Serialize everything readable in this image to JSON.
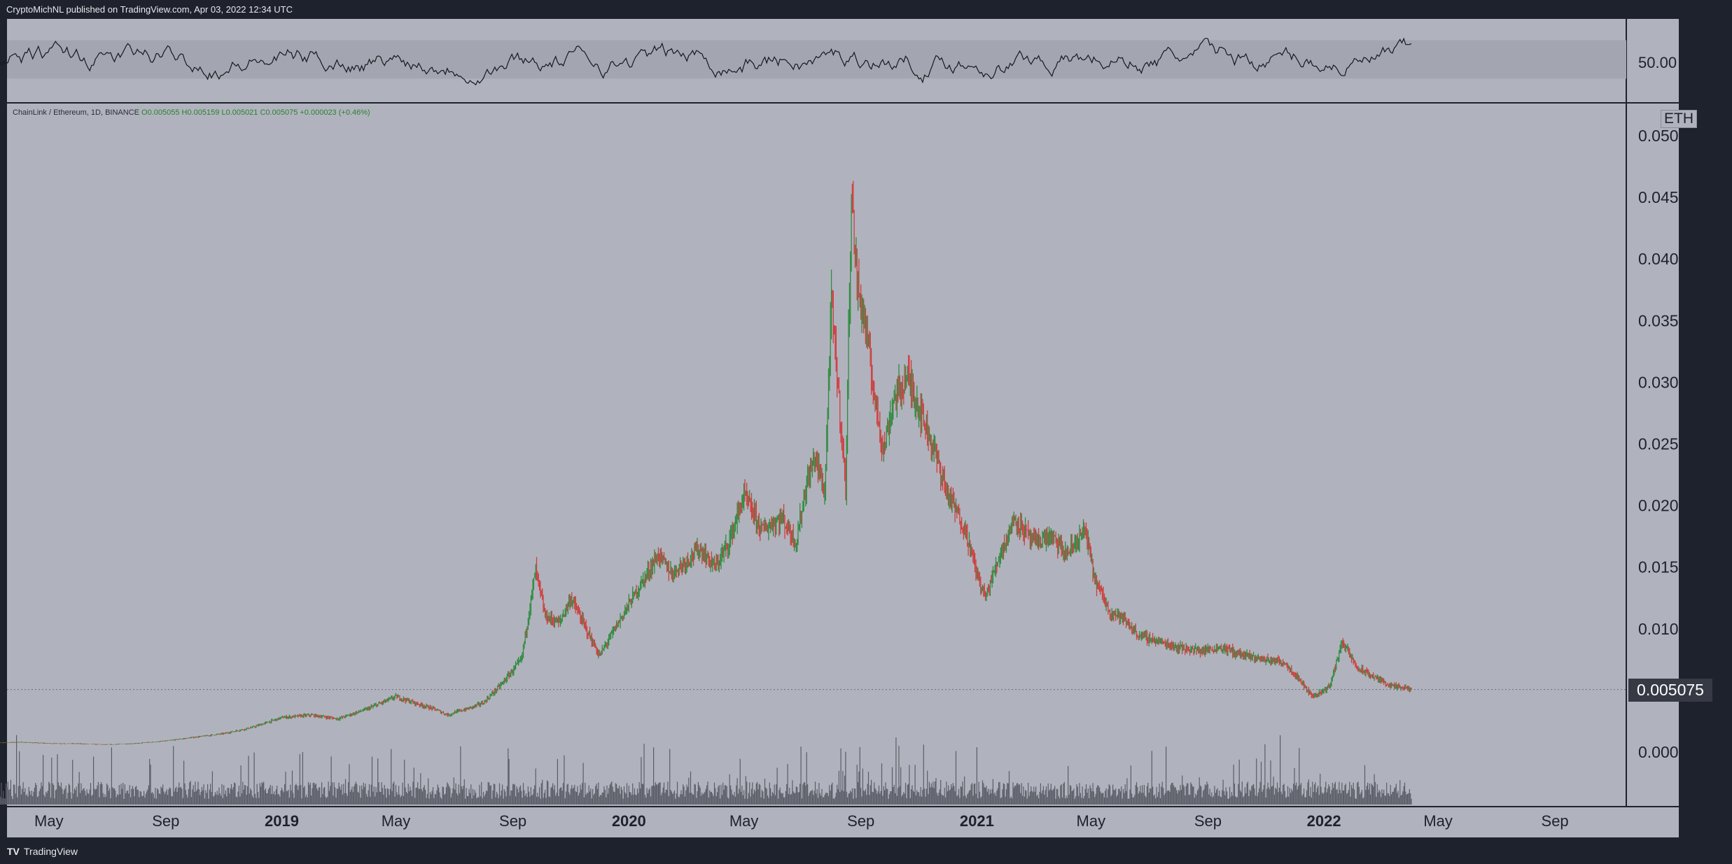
{
  "header": {
    "publisher": "CryptoMichNL published on TradingView.com, Apr 03, 2022 12:34 UTC"
  },
  "footer": {
    "logo": "TV",
    "brand": "TradingView"
  },
  "legend": {
    "symbol": "ChainLink / Ethereum, 1D, BINANCE",
    "open": "O0.005055",
    "high": "H0.005159",
    "low": "L0.005021",
    "close": "C0.005075",
    "change": "+0.000023 (+0.46%)"
  },
  "rsi": {
    "label": "50.00",
    "level": 50,
    "band": [
      30,
      70
    ]
  },
  "price_axis": {
    "unit": "ETH",
    "last_price": "0.005075"
  },
  "colors": {
    "up": "#2e8b3e",
    "down": "#d03c3c",
    "background": "#b0b3bd",
    "frame": "#1e222d",
    "volume": "#5a5d66"
  },
  "chart_data": {
    "type": "line",
    "title": "",
    "xlabel": "",
    "ylabel": "",
    "ylim": [
      -0.004,
      0.053
    ],
    "grid": false,
    "legend": "top-left",
    "x_ticks": [
      "May",
      "Sep",
      "2019",
      "May",
      "Sep",
      "2020",
      "May",
      "Sep",
      "2021",
      "May",
      "Sep",
      "2022",
      "May",
      "Sep"
    ],
    "y_ticks": [
      "0.050000",
      "0.045000",
      "0.040000",
      "0.035000",
      "0.030000",
      "0.025000",
      "0.020000",
      "0.015000",
      "0.010000",
      "0.000000"
    ],
    "y_tick_values": [
      0.05,
      0.045,
      0.04,
      0.035,
      0.03,
      0.025,
      0.02,
      0.015,
      0.01,
      0.0
    ],
    "series": [
      {
        "x": [
          "2018-03-01",
          "2018-04-01",
          "2018-05-01",
          "2018-06-01",
          "2018-07-01",
          "2018-08-01",
          "2018-09-01",
          "2018-10-01",
          "2018-11-01",
          "2018-12-01",
          "2019-01-01",
          "2019-02-01",
          "2019-03-01",
          "2019-04-01",
          "2019-05-01",
          "2019-05-20",
          "2019-06-10",
          "2019-06-25",
          "2019-07-01",
          "2019-07-15",
          "2019-08-01",
          "2019-08-20",
          "2019-09-10",
          "2019-09-25",
          "2019-10-05",
          "2019-10-20",
          "2019-11-01",
          "2019-12-01",
          "2020-01-01",
          "2020-02-01",
          "2020-02-15",
          "2020-03-01",
          "2020-03-15",
          "2020-04-01",
          "2020-04-15",
          "2020-05-01",
          "2020-05-20",
          "2020-06-10",
          "2020-06-25",
          "2020-07-05",
          "2020-07-15",
          "2020-07-25",
          "2020-08-01",
          "2020-08-10",
          "2020-08-16",
          "2020-08-22",
          "2020-08-28",
          "2020-09-05",
          "2020-09-15",
          "2020-09-25",
          "2020-10-05",
          "2020-10-20",
          "2020-11-01",
          "2020-11-15",
          "2020-12-01",
          "2020-12-20",
          "2021-01-01",
          "2021-01-10",
          "2021-01-25",
          "2021-02-10",
          "2021-03-01",
          "2021-03-20",
          "2021-04-05",
          "2021-04-25",
          "2021-05-05",
          "2021-05-20",
          "2021-06-01",
          "2021-06-20",
          "2021-07-10",
          "2021-08-01",
          "2021-08-25",
          "2021-09-15",
          "2021-10-10",
          "2021-11-01",
          "2021-11-20",
          "2021-12-05",
          "2021-12-20",
          "2022-01-01",
          "2022-01-08",
          "2022-01-20",
          "2022-02-05",
          "2022-02-25",
          "2022-03-15",
          "2022-04-03"
        ],
        "y": [
          0.00075,
          0.0008,
          0.0007,
          0.00068,
          0.0006,
          0.0007,
          0.0009,
          0.0012,
          0.0015,
          0.002,
          0.0028,
          0.003,
          0.0027,
          0.0035,
          0.0045,
          0.004,
          0.0035,
          0.003,
          0.0032,
          0.0035,
          0.004,
          0.0055,
          0.0075,
          0.0148,
          0.011,
          0.0105,
          0.0125,
          0.0078,
          0.012,
          0.016,
          0.0145,
          0.0155,
          0.0165,
          0.015,
          0.017,
          0.0208,
          0.018,
          0.019,
          0.017,
          0.0215,
          0.024,
          0.021,
          0.0365,
          0.0275,
          0.0215,
          0.0455,
          0.038,
          0.035,
          0.029,
          0.0245,
          0.0285,
          0.0305,
          0.028,
          0.025,
          0.021,
          0.018,
          0.0145,
          0.0125,
          0.016,
          0.019,
          0.017,
          0.0175,
          0.016,
          0.018,
          0.014,
          0.0115,
          0.011,
          0.0095,
          0.009,
          0.0085,
          0.0082,
          0.0085,
          0.0078,
          0.0075,
          0.0073,
          0.006,
          0.0045,
          0.005,
          0.0055,
          0.009,
          0.0068,
          0.006,
          0.0053,
          0.0051
        ]
      }
    ]
  }
}
